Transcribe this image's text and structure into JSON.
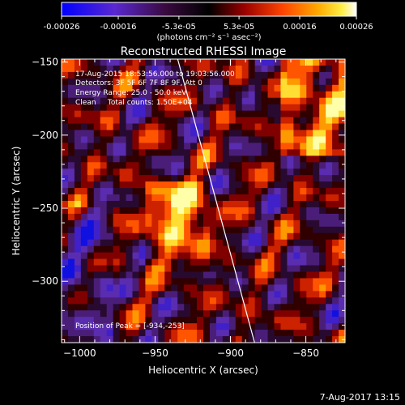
{
  "colorbar": {
    "tick_labels": [
      "-0.00026",
      "-0.00016",
      "-5.3e-05",
      "5.3e-05",
      "0.00016",
      "0.00026"
    ],
    "tick_values": [
      -0.00026,
      -0.00016,
      -5.3e-05,
      5.3e-05,
      0.00016,
      0.00026
    ],
    "units_label": "(photons cm⁻² s⁻¹ asec⁻²)",
    "range": [
      -0.00026,
      0.00026
    ],
    "colors": [
      "#0000ff",
      "#6a2ccf",
      "#330033",
      "#000000",
      "#990000",
      "#ff4400",
      "#ff9900",
      "#ffee33",
      "#ffffff"
    ]
  },
  "chart_data": {
    "type": "heatmap",
    "title": "Reconstructed RHESSI Image",
    "xlabel": "Heliocentric X (arcsec)",
    "ylabel": "Heliocentric Y (arcsec)",
    "xlim": [
      -1012,
      -824
    ],
    "ylim": [
      -342,
      -148
    ],
    "x_ticks": [
      -1000,
      -950,
      -900,
      -850
    ],
    "y_ticks": [
      -300,
      -250,
      -200,
      -150
    ],
    "x_tick_labels": [
      "−1000",
      "−950",
      "−900",
      "−850"
    ],
    "y_tick_labels": [
      "−300",
      "−250",
      "−200",
      "−150"
    ],
    "limb_line": [
      [
        -935,
        -148
      ],
      [
        -884,
        -342
      ]
    ],
    "peak": [
      -934,
      -253
    ]
  },
  "annotations": {
    "time_range": "17-Aug-2015 18:53:56.000 to 19:03:56.000",
    "detectors": "Detectors: 3F 5F 6F 7F 8F 9F, Att 0",
    "energy": "Energy Range: 25.0 - 50.0 keV",
    "method": "Clean     Total counts: 1.50E+04",
    "peak_text": "Position of Peak = [-934,-253]"
  },
  "timestamp": "7-Aug-2017 13:15"
}
